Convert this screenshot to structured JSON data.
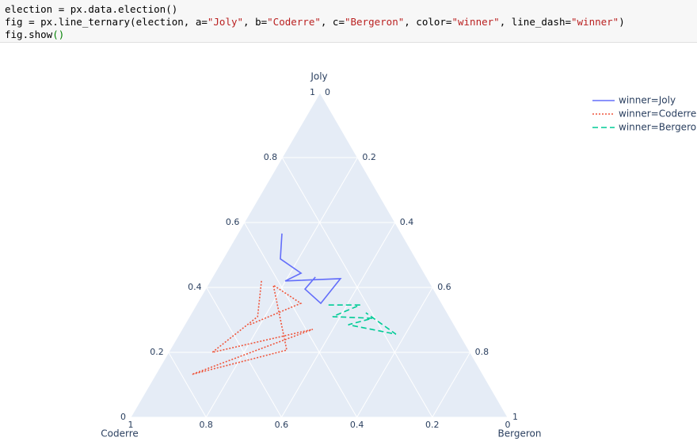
{
  "code": [
    [
      {
        "text": "election = px.data.election()",
        "color": "#000000"
      }
    ],
    [
      {
        "text": "fig = px.line_ternary(election, a=",
        "color": "#000000"
      },
      {
        "text": "\"Joly\"",
        "color": "#ba2121"
      },
      {
        "text": ", b=",
        "color": "#000000"
      },
      {
        "text": "\"Coderre\"",
        "color": "#ba2121"
      },
      {
        "text": ", c=",
        "color": "#000000"
      },
      {
        "text": "\"Bergeron\"",
        "color": "#ba2121"
      },
      {
        "text": ", color=",
        "color": "#000000"
      },
      {
        "text": "\"winner\"",
        "color": "#ba2121"
      },
      {
        "text": ", line_dash=",
        "color": "#000000"
      },
      {
        "text": "\"winner\"",
        "color": "#ba2121"
      },
      {
        "text": ")",
        "color": "#000000"
      }
    ],
    [
      {
        "text": "fig.show",
        "color": "#000000"
      },
      {
        "text": "()",
        "color": "#008000"
      }
    ]
  ],
  "chart_data": {
    "type": "ternary",
    "a_title": "Joly",
    "b_title": "Coderre",
    "c_title": "Bergeron",
    "aticks": [
      0,
      0.2,
      0.4,
      0.6,
      0.8,
      1
    ],
    "bticks": [
      0,
      0.2,
      0.4,
      0.6,
      0.8,
      1
    ],
    "cticks": [
      0,
      0.2,
      0.4,
      0.6,
      0.8,
      1
    ],
    "grid": true,
    "legend": "top-right",
    "series": [
      {
        "name": "winner=Joly",
        "color": "#636efa",
        "dash": "solid",
        "a": [
          0.566,
          0.488,
          0.444,
          0.42,
          0.427,
          0.351,
          0.395,
          0.432
        ],
        "b": [
          0.317,
          0.36,
          0.327,
          0.381,
          0.231,
          0.321,
          0.341,
          0.295
        ],
        "c": [
          0.117,
          0.152,
          0.229,
          0.199,
          0.342,
          0.328,
          0.264,
          0.273
        ]
      },
      {
        "name": "winner=Coderre",
        "color": "#ef553b",
        "dash": "dot",
        "a": [
          0.42,
          0.31,
          0.2,
          0.271,
          0.132,
          0.207,
          0.407,
          0.351,
          0.285
        ],
        "b": [
          0.444,
          0.509,
          0.684,
          0.382,
          0.772,
          0.483,
          0.419,
          0.374,
          0.543
        ],
        "c": [
          0.136,
          0.181,
          0.116,
          0.347,
          0.096,
          0.31,
          0.174,
          0.275,
          0.172
        ]
      },
      {
        "name": "winner=Bergeron",
        "color": "#00cc96",
        "dash": "dash",
        "a": [
          0.346,
          0.346,
          0.31,
          0.305,
          0.285,
          0.256,
          0.322
        ],
        "b": [
          0.303,
          0.219,
          0.31,
          0.207,
          0.281,
          0.169,
          0.216
        ],
        "c": [
          0.351,
          0.435,
          0.38,
          0.488,
          0.434,
          0.575,
          0.462
        ]
      }
    ]
  }
}
